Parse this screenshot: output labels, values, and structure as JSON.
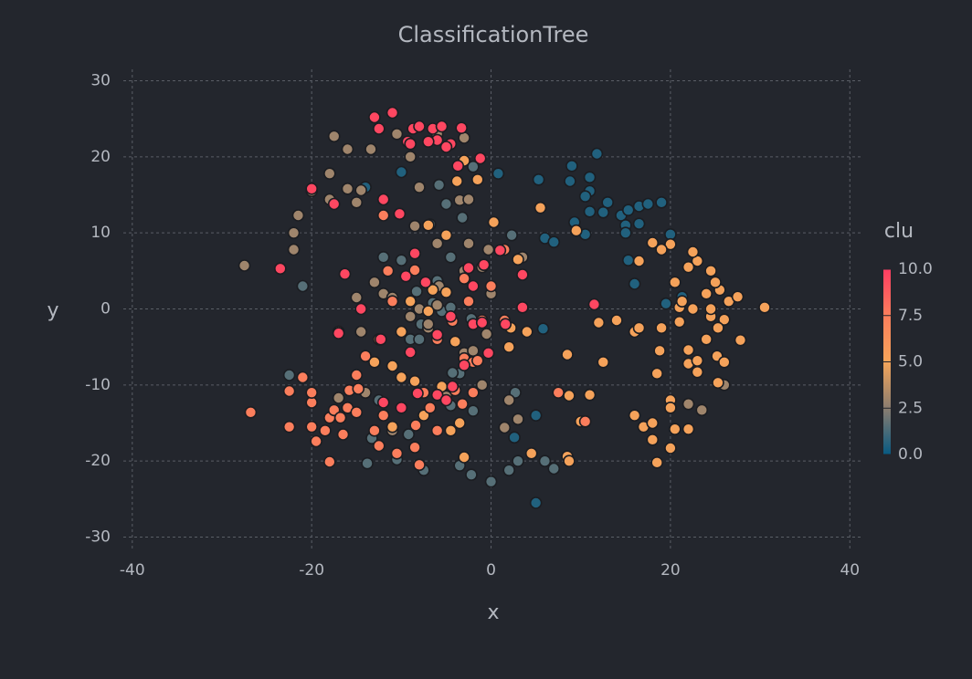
{
  "chart_data": {
    "type": "scatter",
    "title": "ClassificationTree",
    "x_label": "x",
    "y_label": "y",
    "xlim": [
      -41,
      41.5
    ],
    "ylim": [
      -31.5,
      31.5
    ],
    "xticks": [
      -40,
      -20,
      0,
      20,
      40
    ],
    "yticks": [
      -30,
      -20,
      -10,
      0,
      10,
      20,
      30
    ],
    "grid": true,
    "colorbar": {
      "title": "clu",
      "clim": [
        0,
        10
      ],
      "colorscale": [
        "#075a82",
        "#8a7d70",
        "#f5a55a",
        "#fb7e5c",
        "#ff3d62"
      ],
      "ticks": [
        {
          "value": 10,
          "label": "10.0"
        },
        {
          "value": 7.5,
          "label": "7.5"
        },
        {
          "value": 5,
          "label": "5.0"
        },
        {
          "value": 2.5,
          "label": "2.5"
        },
        {
          "value": 0,
          "label": "0.0"
        }
      ]
    },
    "series": [
      {
        "clu": 0.5,
        "x": [
          11.8,
          9,
          5.3,
          11,
          8.8,
          11,
          10.5,
          13,
          12.5,
          11,
          9.3,
          10.5,
          14.5,
          15.3,
          16.5,
          17.5,
          19,
          15,
          16.5,
          15,
          20,
          6,
          7,
          15.3,
          16,
          19.5,
          21.3,
          0.8,
          -10,
          -14,
          2.6,
          5,
          5,
          5.8
        ],
        "y": [
          20.4,
          18.8,
          17,
          17.3,
          16.8,
          15.5,
          14.8,
          14,
          12.7,
          12.8,
          11.4,
          9.8,
          12.3,
          13,
          13.5,
          13.8,
          14,
          11,
          11.2,
          10,
          9.8,
          9.3,
          8.8,
          6.4,
          3.3,
          0.7,
          1.6,
          17.8,
          18,
          16,
          -16.9,
          -14,
          -25.5,
          -2.6
        ]
      },
      {
        "clu": 1.5,
        "x": [
          -22.5,
          -13.8,
          -13.3,
          -12.5,
          -9.2,
          -7.5,
          -4.5,
          -3.5,
          -2.2,
          -2,
          0,
          2,
          2.7,
          3,
          6,
          7,
          -9,
          -8,
          -7.8,
          -5.5,
          -4.5,
          -6,
          -4.5,
          -3.2,
          -5,
          -2,
          -21,
          -2.2,
          -10.5,
          -3.5,
          2.3,
          -5.8,
          -6.8,
          -10,
          -12,
          -8.3,
          -6.5,
          -4.3
        ],
        "y": [
          -8.7,
          -20.3,
          -17,
          -12,
          -16.5,
          -21.2,
          -12.7,
          -20.6,
          -21.8,
          -13.4,
          -22.7,
          -21.2,
          -11,
          -20,
          -20,
          -21,
          -4,
          -4,
          -2,
          -0.3,
          0.2,
          3.7,
          6.8,
          12,
          13.8,
          18.7,
          3,
          -1.3,
          -19.8,
          -8.5,
          9.7,
          16.3,
          11.1,
          6.4,
          6.8,
          2.3,
          0.8,
          -8.4
        ]
      },
      {
        "clu": 3,
        "x": [
          -27.5,
          -22,
          -22,
          -21.5,
          -20,
          -18,
          -17.5,
          -16,
          -13.4,
          -10.5,
          -9,
          -8,
          -6,
          -3,
          -3.5,
          -2.5,
          -15,
          -14.5,
          -16,
          -18,
          -13,
          -15,
          -14.5,
          -12,
          -11,
          -9,
          -7,
          -8,
          -6,
          -3,
          -2,
          -7,
          -1,
          -2.5,
          -0.3,
          -11,
          -5,
          -1,
          2,
          3,
          -17,
          -14,
          3.5,
          -6,
          -8.5,
          -3,
          -0.5,
          0,
          -5.8,
          1.5,
          26,
          23.5,
          22
        ],
        "y": [
          5.7,
          7.8,
          10,
          12.3,
          15.5,
          17.8,
          22.7,
          21,
          21,
          23,
          20,
          16,
          23,
          22.5,
          14.3,
          14.4,
          14,
          15.6,
          15.8,
          14.4,
          3.5,
          1.5,
          -3,
          2,
          1.5,
          -1,
          -2.5,
          0,
          0.5,
          -5.8,
          -5.5,
          -2,
          5.5,
          8.6,
          7.8,
          -16,
          -11.5,
          -10,
          -12,
          -14.5,
          -11.7,
          -11,
          6.8,
          8.6,
          10.9,
          5,
          -3.3,
          2,
          3,
          -15.6,
          -10,
          -13.3,
          -12.5
        ]
      },
      {
        "clu": 5.2,
        "x": [
          0.3,
          -5,
          -7,
          -3.8,
          -3,
          -1.5,
          3,
          -9,
          -7,
          -6.5,
          -5,
          2.2,
          2,
          4,
          -4,
          -8.5,
          -10,
          -7.5,
          -4.5,
          -3.5,
          -3,
          4.5,
          8.5,
          8.7,
          8.7,
          11,
          12.5,
          8.5,
          10,
          12,
          14,
          16,
          16.5,
          19,
          18.8,
          18.5,
          17,
          16,
          18,
          18,
          20,
          18.5,
          20.5,
          22,
          20,
          20,
          22,
          23,
          23,
          22,
          24,
          25.2,
          25.3,
          26,
          27.8,
          26,
          25.3,
          26.5,
          27.5,
          24.5,
          24,
          24.5,
          25.5,
          22.5,
          21,
          21.3,
          20.5,
          21,
          23,
          22.5,
          24.5,
          25,
          20,
          18,
          19,
          16.5,
          30.5,
          22,
          5.5,
          9.5,
          -12.5,
          -13,
          -11,
          -10,
          -5.5,
          -11
        ],
        "y": [
          11.4,
          9.7,
          11,
          16.8,
          19.5,
          17,
          6.5,
          1,
          -0.3,
          2.5,
          2.2,
          -2.5,
          -5,
          -3,
          -4.3,
          -9.5,
          -9,
          -14,
          -16,
          -15,
          -19.5,
          -19,
          -19.4,
          -20,
          -11.4,
          -11.3,
          -7,
          -6,
          -14.8,
          -1.8,
          -1.5,
          -3,
          -2.5,
          -2.5,
          -5.5,
          -8.5,
          -15.5,
          -14,
          -15,
          -17.2,
          -18.3,
          -20.2,
          -15.8,
          -15.8,
          -12,
          -13,
          -7.2,
          -6.8,
          -8.3,
          -5.4,
          -4,
          -6.2,
          -9.7,
          -7,
          -4.1,
          -1.4,
          -2.5,
          1,
          1.6,
          -1,
          2,
          0,
          2.5,
          0,
          0.2,
          1,
          3.5,
          -1.7,
          6.3,
          7.5,
          5,
          3.5,
          8.5,
          8.7,
          7.8,
          6.3,
          0.2,
          5.5,
          13.3,
          10.3,
          -4,
          -7,
          -7.5,
          -3,
          -10.2,
          -15.5
        ]
      },
      {
        "clu": 7.5,
        "x": [
          -26.8,
          -22.5,
          -22.5,
          -21,
          -20,
          -20,
          -20,
          -19.5,
          -18.5,
          -18,
          -18,
          -17.5,
          -16.8,
          -16,
          -15.8,
          -15,
          -16.5,
          -15,
          -14.8,
          -14,
          -13,
          -12.5,
          -12,
          -10.5,
          -8.5,
          -8.4,
          -8,
          -7.5,
          -6.8,
          -6,
          -4,
          -3,
          -3.2,
          -2,
          -17,
          -11,
          -11.5,
          -8.5,
          -6,
          -2.5,
          0,
          1.5,
          1.5,
          -1,
          -3,
          -4.3,
          -1.5,
          10.5,
          7.5,
          -2,
          -12
        ],
        "y": [
          -13.6,
          -15.5,
          -10.8,
          -9,
          -15.5,
          -12.3,
          -11,
          -17.4,
          -16,
          -20.1,
          -14.3,
          -13.3,
          -14.3,
          -13,
          -10.7,
          -13.6,
          -16.5,
          -8.7,
          -10.5,
          -6.2,
          -16,
          -18,
          -14,
          -19,
          -18.2,
          -15.3,
          -20.5,
          -11,
          -13,
          -16,
          -10.7,
          -6.5,
          -12.5,
          -7,
          -3,
          1,
          5,
          5.1,
          -4,
          1,
          3,
          -1.5,
          7.8,
          -1.5,
          4,
          -1.6,
          -6.8,
          -14.8,
          -11,
          -11,
          12.3
        ]
      },
      {
        "clu": 9.6,
        "x": [
          -23.5,
          -16.3,
          -14.5,
          -17,
          -12.3,
          -9,
          -8.2,
          -6,
          -5,
          -4.3,
          -3,
          -2,
          -0.3,
          1.6,
          3.5,
          3.5,
          1,
          -0.8,
          -2,
          -2.5,
          -10.2,
          -8.5,
          -9.5,
          -7.3,
          -12,
          -17.5,
          -20,
          -13,
          -11,
          -12.5,
          -9.3,
          -8.7,
          -8,
          -6,
          -6.5,
          -5.5,
          -4.5,
          -3.3,
          -7,
          -5,
          -3.7,
          -1.2,
          -9,
          -1,
          11.5,
          -12,
          -10,
          -6,
          -4.5
        ],
        "y": [
          5.3,
          4.6,
          0,
          -3.2,
          -4,
          -5.7,
          -11.1,
          -11.3,
          -12,
          -10.2,
          -7.4,
          -2,
          -5.8,
          -2,
          0.2,
          4.5,
          7.7,
          5.8,
          3,
          5.4,
          12.5,
          7.3,
          4.3,
          3.5,
          14.4,
          13.8,
          15.8,
          25.2,
          25.8,
          23.7,
          22,
          23.7,
          24,
          22.2,
          23.7,
          24,
          21.7,
          23.8,
          22,
          21.3,
          18.8,
          19.8,
          21.7,
          -1.8,
          0.6,
          -12.3,
          -13,
          -3.4,
          -1
        ]
      }
    ]
  }
}
